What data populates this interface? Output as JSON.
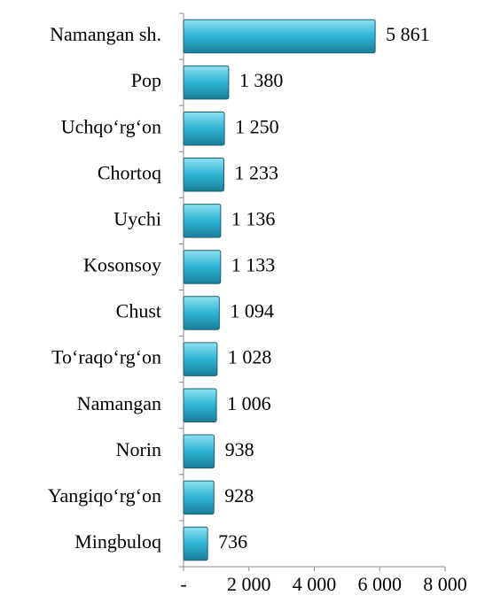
{
  "chart_data": {
    "type": "bar",
    "orientation": "horizontal",
    "categories": [
      "Namangan sh.",
      "Pop",
      "Uchqo‘rg‘on",
      "Chortoq",
      "Uychi",
      "Kosonsoy",
      "Chust",
      "To‘raqo‘rg‘on",
      "Namangan ",
      "Norin",
      "Yangiqo‘rg‘on",
      "Mingbuloq"
    ],
    "values": [
      5861,
      1380,
      1250,
      1233,
      1136,
      1133,
      1094,
      1028,
      1006,
      938,
      928,
      736
    ],
    "value_labels": [
      "5 861",
      "1 380",
      "1 250",
      "1 233",
      "1 136",
      "1 133",
      "1 094",
      "1 028",
      "1 006",
      "938",
      "928",
      "736"
    ],
    "color": "#2fb3d4",
    "xlim": [
      0,
      8000
    ],
    "xticks": [
      {
        "value": 0,
        "label": "-"
      },
      {
        "value": 2000,
        "label": "2 000"
      },
      {
        "value": 4000,
        "label": "4 000"
      },
      {
        "value": 6000,
        "label": "6 000"
      },
      {
        "value": 8000,
        "label": "8 000"
      }
    ],
    "grid": false
  }
}
